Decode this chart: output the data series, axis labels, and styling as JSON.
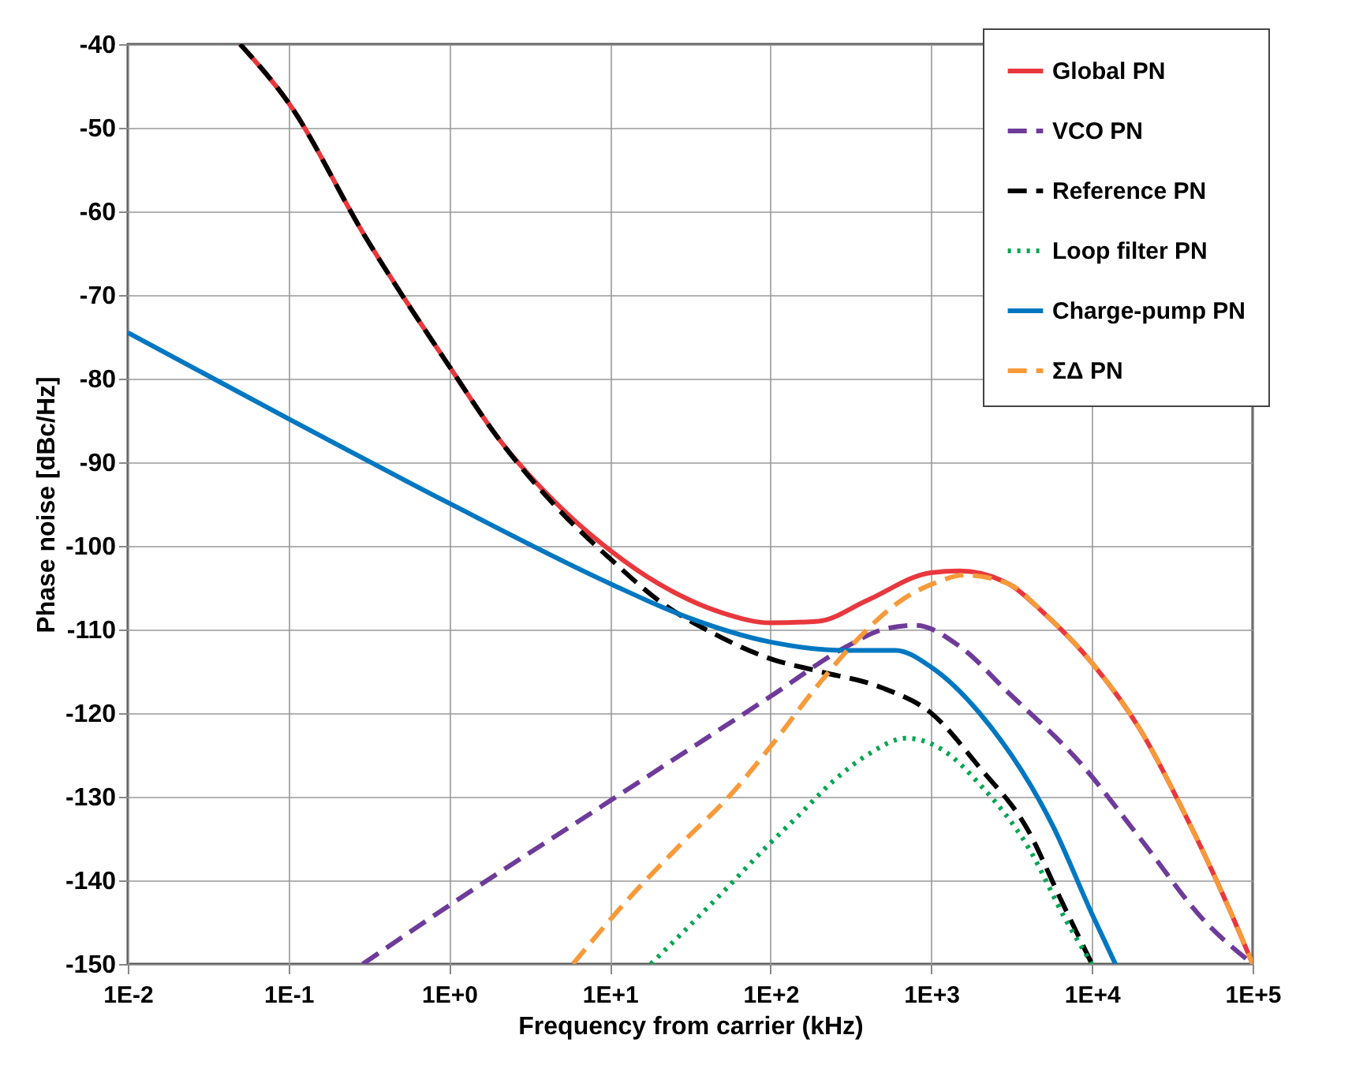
{
  "chart_data": {
    "type": "line",
    "xlabel": "Frequency from carrier (kHz)",
    "ylabel": "Phase noise [dBc/Hz]",
    "log": "x",
    "grid": true,
    "legend": "top right",
    "xlim": [
      0.01,
      100000
    ],
    "ylim": [
      -150,
      -40
    ],
    "xticks": [
      {
        "value": 0.01,
        "label": "1E-2"
      },
      {
        "value": 0.1,
        "label": "1E-1"
      },
      {
        "value": 1,
        "label": "1E+0"
      },
      {
        "value": 10,
        "label": "1E+1"
      },
      {
        "value": 100,
        "label": "1E+2"
      },
      {
        "value": 1000,
        "label": "1E+3"
      },
      {
        "value": 10000,
        "label": "1E+4"
      },
      {
        "value": 100000,
        "label": "1E+5"
      }
    ],
    "yticks": [
      -150,
      -140,
      -130,
      -120,
      -110,
      -100,
      -90,
      -80,
      -70,
      -60,
      -50,
      -40
    ],
    "series": [
      {
        "name": "Global PN",
        "color": "#e8383d",
        "line_style": "solid",
        "x": [
          0.05,
          0.1,
          0.3,
          1,
          2,
          5,
          10,
          20,
          50,
          100,
          200,
          400,
          1000,
          1500,
          3000,
          5000,
          10000,
          20000,
          40000,
          70000,
          100000
        ],
        "values": [
          -40,
          -47,
          -63,
          -78.5,
          -87,
          -95.5,
          -100.5,
          -104.5,
          -108,
          -109.2,
          -109,
          -106.5,
          -103.2,
          -103,
          -104.5,
          -108,
          -114,
          -122,
          -133,
          -143,
          -150
        ]
      },
      {
        "name": "VCO PN",
        "color": "#6e3b9a",
        "line_style": "dashed",
        "x": [
          0.29,
          1,
          10,
          100,
          300,
          500,
          800,
          1500,
          3000,
          8500,
          20000,
          51000,
          100000
        ],
        "values": [
          -150,
          -143,
          -130.5,
          -118,
          -112,
          -110,
          -109.5,
          -112,
          -117.5,
          -126,
          -135,
          -145,
          -150
        ]
      },
      {
        "name": "Reference PN",
        "color": "#000000",
        "line_style": "dashed",
        "x": [
          0.05,
          0.1,
          0.3,
          1,
          2,
          5,
          10,
          20,
          50,
          100,
          200,
          500,
          1000,
          2000,
          4000,
          6300,
          10000
        ],
        "values": [
          -40,
          -47,
          -63,
          -78.5,
          -87,
          -96,
          -101.5,
          -106.5,
          -111,
          -113.5,
          -115,
          -117,
          -120,
          -126.5,
          -134,
          -142,
          -150
        ]
      },
      {
        "name": "Loop filter PN",
        "color": "#00a651",
        "line_style": "dotted",
        "x": [
          18,
          50,
          100,
          145,
          250,
          400,
          700,
          1200,
          2000,
          4000,
          7000,
          10000
        ],
        "values": [
          -150,
          -141.5,
          -135.5,
          -132.5,
          -128,
          -125,
          -123,
          -124.5,
          -128.5,
          -136,
          -145,
          -150
        ]
      },
      {
        "name": "Charge-pump PN",
        "color": "#0077c0",
        "line_style": "solid",
        "x": [
          0.01,
          0.1,
          1,
          10,
          30,
          100,
          300,
          600,
          1000,
          2000,
          5750,
          10000,
          14000
        ],
        "values": [
          -74.5,
          -84.8,
          -94.9,
          -104.5,
          -108.5,
          -111.5,
          -112.5,
          -112.5,
          -114.5,
          -120,
          -133.6,
          -144,
          -150
        ]
      },
      {
        "name": "ΣΔ PN",
        "color": "#f79a3a",
        "line_style": "dashed",
        "x": [
          5.9,
          12,
          30,
          55,
          100,
          200,
          355,
          600,
          1100,
          1600,
          3000,
          5000,
          10000,
          20000,
          40000,
          70000,
          100000
        ],
        "values": [
          -150,
          -143,
          -135,
          -130,
          -124,
          -116.5,
          -111,
          -107,
          -104.3,
          -103.5,
          -104.5,
          -108,
          -114,
          -122,
          -133,
          -143,
          -150
        ]
      }
    ]
  }
}
